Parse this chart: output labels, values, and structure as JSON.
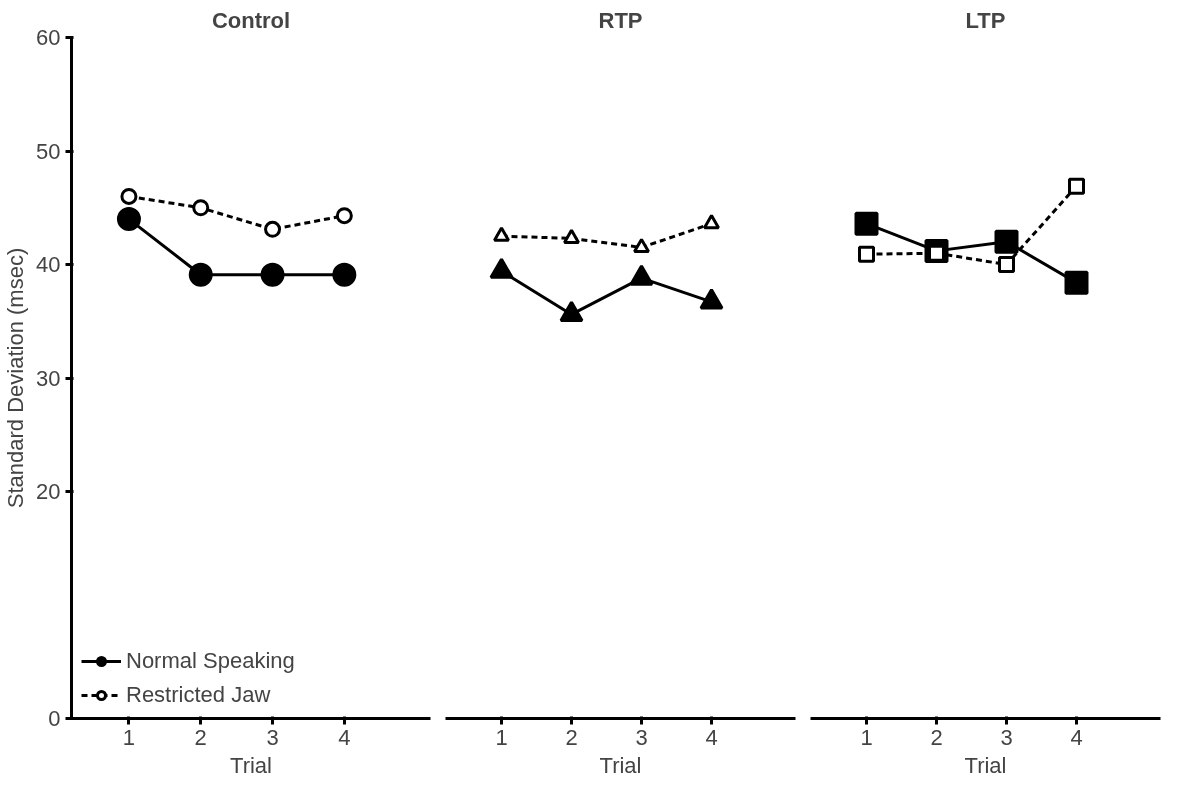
{
  "chart_data": [
    {
      "type": "line",
      "title": "Control",
      "xlabel": "Trial",
      "ylabel": "Standard Deviation (msec)",
      "categories": [
        "1",
        "2",
        "3",
        "4"
      ],
      "ylim": [
        0,
        60
      ],
      "yticks": [
        0,
        20,
        30,
        40,
        50,
        60
      ],
      "marker": "circle",
      "legend": "bottom left",
      "grid": false,
      "series": [
        {
          "name": "Normal Speaking",
          "color": "#000000",
          "line_style": "solid",
          "values": [
            44.0,
            39.1,
            39.1,
            39.1
          ]
        },
        {
          "name": "Restricted Jaw",
          "color": "#000000",
          "line_style": "dashed",
          "values": [
            46.0,
            45.0,
            43.1,
            44.3
          ]
        }
      ]
    },
    {
      "type": "line",
      "title": "RTP",
      "xlabel": "Trial",
      "categories": [
        "1",
        "2",
        "3",
        "4"
      ],
      "ylim": [
        0,
        60
      ],
      "tick_labels": "x",
      "marker": "triangle",
      "grid": false,
      "series": [
        {
          "color": "#000000",
          "line_style": "solid",
          "values": [
            39.4,
            35.6,
            38.8,
            36.7
          ]
        },
        {
          "color": "#000000",
          "line_style": "dashed",
          "values": [
            42.5,
            42.3,
            41.5,
            43.6
          ]
        }
      ]
    },
    {
      "type": "line",
      "title": "LTP",
      "xlabel": "Trial",
      "categories": [
        "1",
        "2",
        "3",
        "4"
      ],
      "ylim": [
        0,
        60
      ],
      "tick_labels": "x",
      "marker": "square",
      "grid": false,
      "series": [
        {
          "color": "#000000",
          "line_style": "solid",
          "values": [
            43.6,
            41.2,
            42.0,
            38.4
          ]
        },
        {
          "color": "#000000",
          "line_style": "dashed",
          "values": [
            40.9,
            41.0,
            40.0,
            46.9
          ]
        }
      ]
    }
  ]
}
